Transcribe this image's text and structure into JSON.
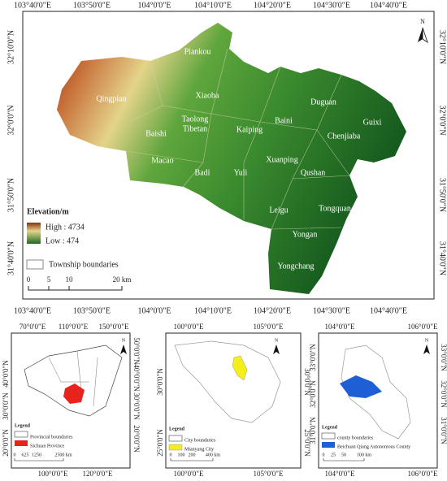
{
  "main_map": {
    "top_labels": [
      "103°40'0\"E",
      "103°50'0\"E",
      "104°0'0\"E",
      "104°10'0\"E",
      "104°20'0\"E",
      "104°30'0\"E",
      "104°40'0\"E"
    ],
    "bottom_labels": [
      "103°40'0\"E",
      "103°50'0\"E",
      "104°0'0\"E",
      "104°10'0\"E",
      "104°20'0\"E",
      "104°30'0\"E",
      "104°40'0\"E"
    ],
    "left_labels": [
      "32°10'0\"N",
      "32°0'0\"N",
      "31°50'0\"N",
      "31°40'0\"N"
    ],
    "right_labels": [
      "32°10'0\"N",
      "32°0'0\"N",
      "31°50'0\"N",
      "31°40'0\"N"
    ],
    "townships": [
      "Piankou",
      "Qingpian",
      "Xiaoba",
      "Taolong",
      "Tibetan",
      "Baishi",
      "Kaiping",
      "Baini",
      "Duguan",
      "Guixi",
      "Chenjiaba",
      "Macao",
      "Badi",
      "Yuli",
      "Xuanping",
      "Qushan",
      "Leigu",
      "Tongquan",
      "Yongan",
      "Yongchang"
    ],
    "legend": {
      "title": "Elevation/m",
      "high": "High : 4734",
      "low": "Low : 474",
      "boundaries": "Township boundaries"
    },
    "scale": [
      "0",
      "5",
      "10",
      "20 km"
    ],
    "north": "N"
  },
  "insets": [
    {
      "top_labels": [
        "70°0'0\"E",
        "110°0'0\"E",
        "150°0'0\"E"
      ],
      "bottom_labels": [
        "100°0'0\"E",
        "120°0'0\"E"
      ],
      "left_labels": [
        "40°0'0\"N",
        "30°0'0\"N",
        "20°0'0\"N"
      ],
      "right_labels": [
        "50°0'0\"N",
        "40°0'0\"N",
        "30°0'0\"N",
        "20°0'0\"N"
      ],
      "legend": {
        "title": "Legend",
        "boundaries": "Provincial boundaries",
        "highlight": "Sichuan Province"
      },
      "scale": [
        "0",
        "625",
        "1250",
        "2500 km"
      ],
      "north": "N"
    },
    {
      "top_labels": [
        "100°0'0\"E",
        "105°0'0\"E"
      ],
      "bottom_labels": [
        "100°0'0\"E",
        "105°0'0\"E"
      ],
      "left_labels": [
        "30°0'0\"N",
        "25°0'0\"N"
      ],
      "right_labels": [
        "30°0'0\"N",
        "25°0'0\"N"
      ],
      "legend": {
        "title": "Legend",
        "boundaries": "City boundaries",
        "highlight": "Mianyang City"
      },
      "scale": [
        "0",
        "100",
        "200",
        "400 km"
      ],
      "north": "N"
    },
    {
      "top_labels": [
        "104°0'0\"E",
        "106°0'0\"E"
      ],
      "bottom_labels": [
        "104°0'0\"E",
        "106°0'0\"E"
      ],
      "left_labels": [
        "33°0'0\"N",
        "32°0'0\"N",
        "31°0'0\"N"
      ],
      "right_labels": [
        "33°0'0\"N",
        "32°0'0\"N",
        "31°0'0\"N"
      ],
      "legend": {
        "title": "Legend",
        "boundaries": "county boundaries",
        "highlight": "Beichuan Qiang Autonomous County"
      },
      "scale": [
        "0",
        "25",
        "50",
        "100 km"
      ],
      "north": "N"
    }
  ]
}
